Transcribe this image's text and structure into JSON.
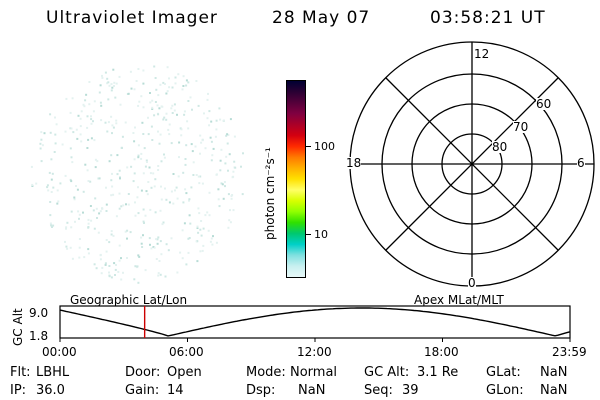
{
  "header": {
    "instrument": "Ultraviolet Imager",
    "date": "28 May 07",
    "time": "03:58:21 UT"
  },
  "colorbar": {
    "unit_label": "photon cm⁻²s⁻¹",
    "ticks": [
      "100",
      "10"
    ],
    "colors": [
      "#000033",
      "#2a0033",
      "#55003a",
      "#800040",
      "#aa0028",
      "#d40010",
      "#ff2a00",
      "#ff7a00",
      "#ffb000",
      "#ffe000",
      "#ffff66",
      "#d8ff00",
      "#90ff00",
      "#30e000",
      "#00c870",
      "#00d0c8",
      "#80e0e0",
      "#c8f0f0",
      "#e8f8f8"
    ]
  },
  "polar_plot": {
    "mlt_labels": {
      "top": "12",
      "left": "18",
      "right": "6",
      "bottom": "0"
    },
    "lat_labels": [
      "60",
      "70",
      "80"
    ]
  },
  "timeline": {
    "left_title": "Geographic Lat/Lon",
    "right_title": "Apex MLat/MLT",
    "axis_label": "GC Alt",
    "y_max": "9.0",
    "y_min": "1.8",
    "x_ticks": [
      "00:00",
      "06:00",
      "12:00",
      "18:00",
      "23:59"
    ],
    "current_time_fraction": 0.166,
    "marker_color": "#cc0000"
  },
  "status": {
    "flt_label": "Flt:",
    "flt_value": "LBHL",
    "ip_label": "IP:",
    "ip_value": "36.0",
    "door_label": "Door:",
    "door_value": "Open",
    "gain_label": "Gain:",
    "gain_value": "14",
    "mode_label": "Mode:",
    "mode_value": "Normal",
    "dsp_label": "Dsp:",
    "dsp_value": "NaN",
    "gcalt_label": "GC Alt:",
    "gcalt_value": "3.1 Re",
    "seq_label": "Seq:",
    "seq_value": "39",
    "glat_label": "GLat:",
    "glat_value": "NaN",
    "glon_label": "GLon:",
    "glon_value": "NaN"
  }
}
